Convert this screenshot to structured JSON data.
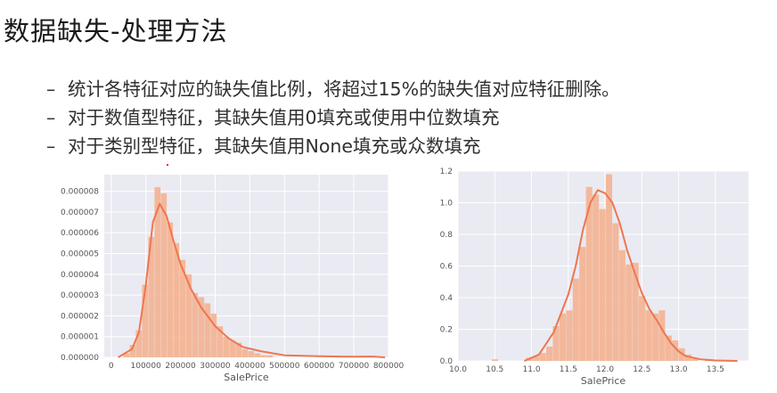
{
  "slide": {
    "title": "数据缺失-处理方法",
    "bullets": [
      {
        "dash": "–",
        "text": "统计各特征对应的缺失值比例，将超过15%的缺失值对应特征删除。"
      },
      {
        "dash": "–",
        "text": "对于数值型特征，其缺失值用0填充或使用中位数填充"
      },
      {
        "dash": "–",
        "text": "对于类别型特征，其缺失值用None填充或众数填充"
      }
    ]
  },
  "colors": {
    "plot_bg": "#eaeaf2",
    "grid": "#ffffff",
    "bar": "#f3b596",
    "kde_line": "#ee7650",
    "accent_dot": "#e23333"
  },
  "chart_data": [
    {
      "type": "bar",
      "subtype": "histogram-with-kde",
      "xlabel": "SalePrice",
      "ylabel": "",
      "xlim": [
        -20000,
        800000
      ],
      "ylim": [
        0,
        8.8e-06
      ],
      "grid": true,
      "xticks": [
        {
          "value": 0,
          "label": "0"
        },
        {
          "value": 100000,
          "label": "100000"
        },
        {
          "value": 200000,
          "label": "200000"
        },
        {
          "value": 300000,
          "label": "300000"
        },
        {
          "value": 400000,
          "label": "400000"
        },
        {
          "value": 500000,
          "label": "500000"
        },
        {
          "value": 600000,
          "label": "600000"
        },
        {
          "value": 700000,
          "label": "700000"
        },
        {
          "value": 800000,
          "label": "800000"
        }
      ],
      "yticks": [
        {
          "value": 0,
          "label": "0.000000"
        },
        {
          "value": 1e-06,
          "label": "0.000001"
        },
        {
          "value": 2e-06,
          "label": "0.000002"
        },
        {
          "value": 3e-06,
          "label": "0.000003"
        },
        {
          "value": 4e-06,
          "label": "0.000004"
        },
        {
          "value": 5e-06,
          "label": "0.000005"
        },
        {
          "value": 6e-06,
          "label": "0.000006"
        },
        {
          "value": 7e-06,
          "label": "0.000007"
        },
        {
          "value": 8e-06,
          "label": "0.000008"
        }
      ],
      "bins": [
        {
          "x0": 35000,
          "x1": 53000,
          "y": 2e-07
        },
        {
          "x0": 53000,
          "x1": 71000,
          "y": 6e-07
        },
        {
          "x0": 71000,
          "x1": 89000,
          "y": 1.3e-06
        },
        {
          "x0": 89000,
          "x1": 107000,
          "y": 3.5e-06
        },
        {
          "x0": 107000,
          "x1": 125000,
          "y": 5.8e-06
        },
        {
          "x0": 125000,
          "x1": 143000,
          "y": 8.2e-06
        },
        {
          "x0": 143000,
          "x1": 161000,
          "y": 7.9e-06
        },
        {
          "x0": 161000,
          "x1": 179000,
          "y": 6.5e-06
        },
        {
          "x0": 179000,
          "x1": 197000,
          "y": 5.5e-06
        },
        {
          "x0": 197000,
          "x1": 215000,
          "y": 4.7e-06
        },
        {
          "x0": 215000,
          "x1": 233000,
          "y": 4e-06
        },
        {
          "x0": 233000,
          "x1": 251000,
          "y": 3.1e-06
        },
        {
          "x0": 251000,
          "x1": 269000,
          "y": 2.9e-06
        },
        {
          "x0": 269000,
          "x1": 287000,
          "y": 2.6e-06
        },
        {
          "x0": 287000,
          "x1": 305000,
          "y": 2.1e-06
        },
        {
          "x0": 305000,
          "x1": 323000,
          "y": 1.5e-06
        },
        {
          "x0": 323000,
          "x1": 341000,
          "y": 1e-06
        },
        {
          "x0": 341000,
          "x1": 359000,
          "y": 8e-07
        },
        {
          "x0": 359000,
          "x1": 377000,
          "y": 7e-07
        },
        {
          "x0": 377000,
          "x1": 395000,
          "y": 4e-07
        },
        {
          "x0": 395000,
          "x1": 413000,
          "y": 3e-07
        },
        {
          "x0": 413000,
          "x1": 431000,
          "y": 2e-07
        },
        {
          "x0": 431000,
          "x1": 449000,
          "y": 1e-07
        },
        {
          "x0": 449000,
          "x1": 467000,
          "y": 1e-07
        }
      ],
      "kde": [
        [
          20000,
          0.0
        ],
        [
          60000,
          4e-07
        ],
        [
          80000,
          1.2e-06
        ],
        [
          100000,
          3.5e-06
        ],
        [
          120000,
          6.5e-06
        ],
        [
          140000,
          7.4e-06
        ],
        [
          160000,
          6.8e-06
        ],
        [
          180000,
          5.6e-06
        ],
        [
          200000,
          4.5e-06
        ],
        [
          230000,
          3.3e-06
        ],
        [
          260000,
          2.4e-06
        ],
        [
          300000,
          1.5e-06
        ],
        [
          340000,
          9e-07
        ],
        [
          380000,
          5e-07
        ],
        [
          430000,
          3e-07
        ],
        [
          500000,
          1e-07
        ],
        [
          600000,
          5e-08
        ],
        [
          700000,
          3e-08
        ],
        [
          755000,
          4e-08
        ],
        [
          790000,
          0.0
        ]
      ]
    },
    {
      "type": "bar",
      "subtype": "histogram-with-kde",
      "xlabel": "SalePrice",
      "ylabel": "",
      "xlim": [
        10.0,
        13.95
      ],
      "ylim": [
        0,
        1.2
      ],
      "grid": true,
      "xticks": [
        {
          "value": 10.0,
          "label": "10.0"
        },
        {
          "value": 10.5,
          "label": "10.5"
        },
        {
          "value": 11.0,
          "label": "11.0"
        },
        {
          "value": 11.5,
          "label": "11.5"
        },
        {
          "value": 12.0,
          "label": "12.0"
        },
        {
          "value": 12.5,
          "label": "12.5"
        },
        {
          "value": 13.0,
          "label": "13.0"
        },
        {
          "value": 13.5,
          "label": "13.5"
        }
      ],
      "yticks": [
        {
          "value": 0.0,
          "label": "0.0"
        },
        {
          "value": 0.2,
          "label": "0.2"
        },
        {
          "value": 0.4,
          "label": "0.4"
        },
        {
          "value": 0.6,
          "label": "0.6"
        },
        {
          "value": 0.8,
          "label": "0.8"
        },
        {
          "value": 1.0,
          "label": "1.0"
        },
        {
          "value": 1.2,
          "label": "1.2"
        }
      ],
      "bins": [
        {
          "x0": 10.46,
          "x1": 10.55,
          "y": 0.01
        },
        {
          "x0": 10.93,
          "x1": 11.02,
          "y": 0.02
        },
        {
          "x0": 11.02,
          "x1": 11.11,
          "y": 0.03
        },
        {
          "x0": 11.11,
          "x1": 11.2,
          "y": 0.05
        },
        {
          "x0": 11.2,
          "x1": 11.29,
          "y": 0.09
        },
        {
          "x0": 11.29,
          "x1": 11.38,
          "y": 0.22
        },
        {
          "x0": 11.38,
          "x1": 11.47,
          "y": 0.3
        },
        {
          "x0": 11.47,
          "x1": 11.56,
          "y": 0.32
        },
        {
          "x0": 11.56,
          "x1": 11.65,
          "y": 0.52
        },
        {
          "x0": 11.65,
          "x1": 11.74,
          "y": 0.72
        },
        {
          "x0": 11.74,
          "x1": 11.83,
          "y": 1.1
        },
        {
          "x0": 11.83,
          "x1": 11.92,
          "y": 1.05
        },
        {
          "x0": 11.92,
          "x1": 12.01,
          "y": 0.96
        },
        {
          "x0": 12.01,
          "x1": 12.1,
          "y": 1.18
        },
        {
          "x0": 12.1,
          "x1": 12.19,
          "y": 0.87
        },
        {
          "x0": 12.19,
          "x1": 12.28,
          "y": 0.7
        },
        {
          "x0": 12.28,
          "x1": 12.37,
          "y": 0.61
        },
        {
          "x0": 12.37,
          "x1": 12.46,
          "y": 0.62
        },
        {
          "x0": 12.46,
          "x1": 12.55,
          "y": 0.41
        },
        {
          "x0": 12.55,
          "x1": 12.64,
          "y": 0.32
        },
        {
          "x0": 12.64,
          "x1": 12.73,
          "y": 0.3
        },
        {
          "x0": 12.73,
          "x1": 12.82,
          "y": 0.32
        },
        {
          "x0": 12.82,
          "x1": 12.91,
          "y": 0.16
        },
        {
          "x0": 12.91,
          "x1": 13.0,
          "y": 0.13
        },
        {
          "x0": 13.0,
          "x1": 13.09,
          "y": 0.08
        },
        {
          "x0": 13.09,
          "x1": 13.18,
          "y": 0.04
        },
        {
          "x0": 13.18,
          "x1": 13.27,
          "y": 0.02
        },
        {
          "x0": 13.36,
          "x1": 13.45,
          "y": 0.01
        }
      ],
      "kde": [
        [
          10.9,
          0.0
        ],
        [
          11.1,
          0.04
        ],
        [
          11.3,
          0.18
        ],
        [
          11.5,
          0.42
        ],
        [
          11.6,
          0.6
        ],
        [
          11.7,
          0.83
        ],
        [
          11.8,
          1.0
        ],
        [
          11.9,
          1.08
        ],
        [
          12.0,
          1.06
        ],
        [
          12.1,
          1.0
        ],
        [
          12.2,
          0.87
        ],
        [
          12.3,
          0.7
        ],
        [
          12.4,
          0.56
        ],
        [
          12.5,
          0.43
        ],
        [
          12.6,
          0.33
        ],
        [
          12.7,
          0.26
        ],
        [
          12.8,
          0.18
        ],
        [
          12.9,
          0.11
        ],
        [
          13.0,
          0.06
        ],
        [
          13.1,
          0.03
        ],
        [
          13.3,
          0.01
        ],
        [
          13.5,
          0.003
        ],
        [
          13.8,
          0.0
        ]
      ]
    }
  ]
}
